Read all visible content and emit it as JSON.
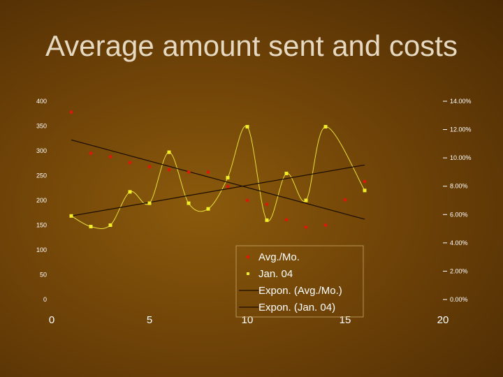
{
  "slide": {
    "title": "Average amount sent and costs"
  },
  "chart_data": {
    "type": "scatter",
    "x_axis": {
      "range": [
        0,
        20
      ],
      "ticks": [
        0,
        5,
        10,
        15,
        20
      ],
      "tick_labels": [
        "0",
        "5",
        "10",
        "15",
        "20"
      ]
    },
    "y_left": {
      "range": [
        0,
        400
      ],
      "ticks": [
        0,
        50,
        100,
        150,
        200,
        250,
        300,
        350,
        400
      ],
      "tick_labels": [
        "0",
        "50",
        "100",
        "150",
        "200",
        "250",
        "300",
        "350",
        "400"
      ]
    },
    "y_right": {
      "range": [
        0,
        14
      ],
      "ticks": [
        0,
        2,
        4,
        6,
        8,
        10,
        12,
        14
      ],
      "tick_labels": [
        "0.00%",
        "2.00%",
        "4.00%",
        "6.00%",
        "8.00%",
        "10.00%",
        "12.00%",
        "14.00%"
      ]
    },
    "series": [
      {
        "name": "Avg./Mo.",
        "axis": "left",
        "marker": "diamond",
        "color": "#dd1a0a",
        "x": [
          1,
          2,
          3,
          4,
          5,
          6,
          7,
          8,
          9,
          10,
          11,
          12,
          13,
          14,
          15,
          16
        ],
        "y": [
          378,
          295,
          288,
          276,
          268,
          262,
          257,
          257,
          228,
          200,
          192,
          161,
          146,
          150,
          201,
          238
        ]
      },
      {
        "name": "Jan. 04",
        "axis": "right",
        "marker": "square",
        "color": "#f2ee2a",
        "x": [
          1,
          2,
          3,
          4,
          5,
          6,
          7,
          8,
          9,
          10,
          11,
          12,
          13,
          14,
          15,
          16
        ],
        "y": [
          5.9,
          5.15,
          5.25,
          7.6,
          6.8,
          10.4,
          6.8,
          6.4,
          8.6,
          12.2,
          5.6,
          8.9,
          7.0,
          12.2,
          null,
          7.7
        ]
      },
      {
        "name": "Expon. (Avg./Mo.)",
        "type": "trendline",
        "axis": "left",
        "color": "#1a0c00",
        "x": [
          1,
          16
        ],
        "y": [
          322,
          162
        ]
      },
      {
        "name": "Expon. (Jan. 04)",
        "type": "trendline",
        "axis": "right",
        "color": "#1a0c00",
        "x": [
          1,
          16
        ],
        "y": [
          5.9,
          9.5
        ]
      }
    ],
    "smooth_line": {
      "series": "Jan. 04",
      "color": "#e7e23c"
    },
    "legend": {
      "position": "bottom-right-inside",
      "entries": [
        {
          "label": "Avg./Mo.",
          "marker": "diamond",
          "color": "#dd1a0a"
        },
        {
          "label": "Jan. 04",
          "marker": "square",
          "color": "#f2ee2a"
        },
        {
          "label": "Expon. (Avg./Mo.)",
          "marker": "line",
          "color": "#1a0c00"
        },
        {
          "label": "Expon. (Jan. 04)",
          "marker": "line",
          "color": "#1a0c00"
        }
      ]
    },
    "grid": false
  }
}
